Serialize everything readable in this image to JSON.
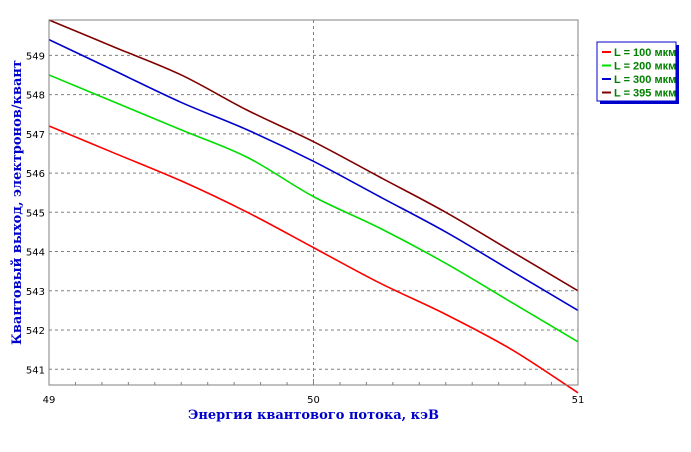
{
  "chart_data": {
    "type": "line",
    "xlabel": "Энергия квантового потока, кэВ",
    "ylabel": "Квантовый выход, электронов/квант",
    "xlim": [
      49,
      51
    ],
    "ylim": [
      540.6,
      549.9
    ],
    "x_ticks": [
      "49",
      "50",
      "51"
    ],
    "y_ticks": [
      "541",
      "542",
      "543",
      "544",
      "545",
      "546",
      "547",
      "548",
      "549"
    ],
    "grid": true,
    "legend_position": "top-right",
    "x": [
      49,
      49.25,
      49.5,
      49.75,
      50,
      50.25,
      50.5,
      50.75,
      51
    ],
    "series": [
      {
        "name": "L = 100 мкм",
        "color": "#ff0000",
        "values": [
          547.2,
          546.5,
          545.8,
          545.0,
          544.1,
          543.2,
          542.4,
          541.5,
          540.4
        ]
      },
      {
        "name": "L = 200 мкм",
        "color": "#00dd00",
        "values": [
          548.5,
          547.8,
          547.1,
          546.4,
          545.4,
          544.6,
          543.7,
          542.7,
          541.7
        ]
      },
      {
        "name": "L = 300 мкм",
        "color": "#0000cc",
        "values": [
          549.4,
          548.6,
          547.8,
          547.1,
          546.3,
          545.4,
          544.5,
          543.5,
          542.5
        ]
      },
      {
        "name": "L = 395 мкм",
        "color": "#800000",
        "values": [
          549.9,
          549.2,
          548.5,
          547.6,
          546.8,
          545.9,
          545.0,
          544.0,
          543.0
        ]
      }
    ]
  }
}
